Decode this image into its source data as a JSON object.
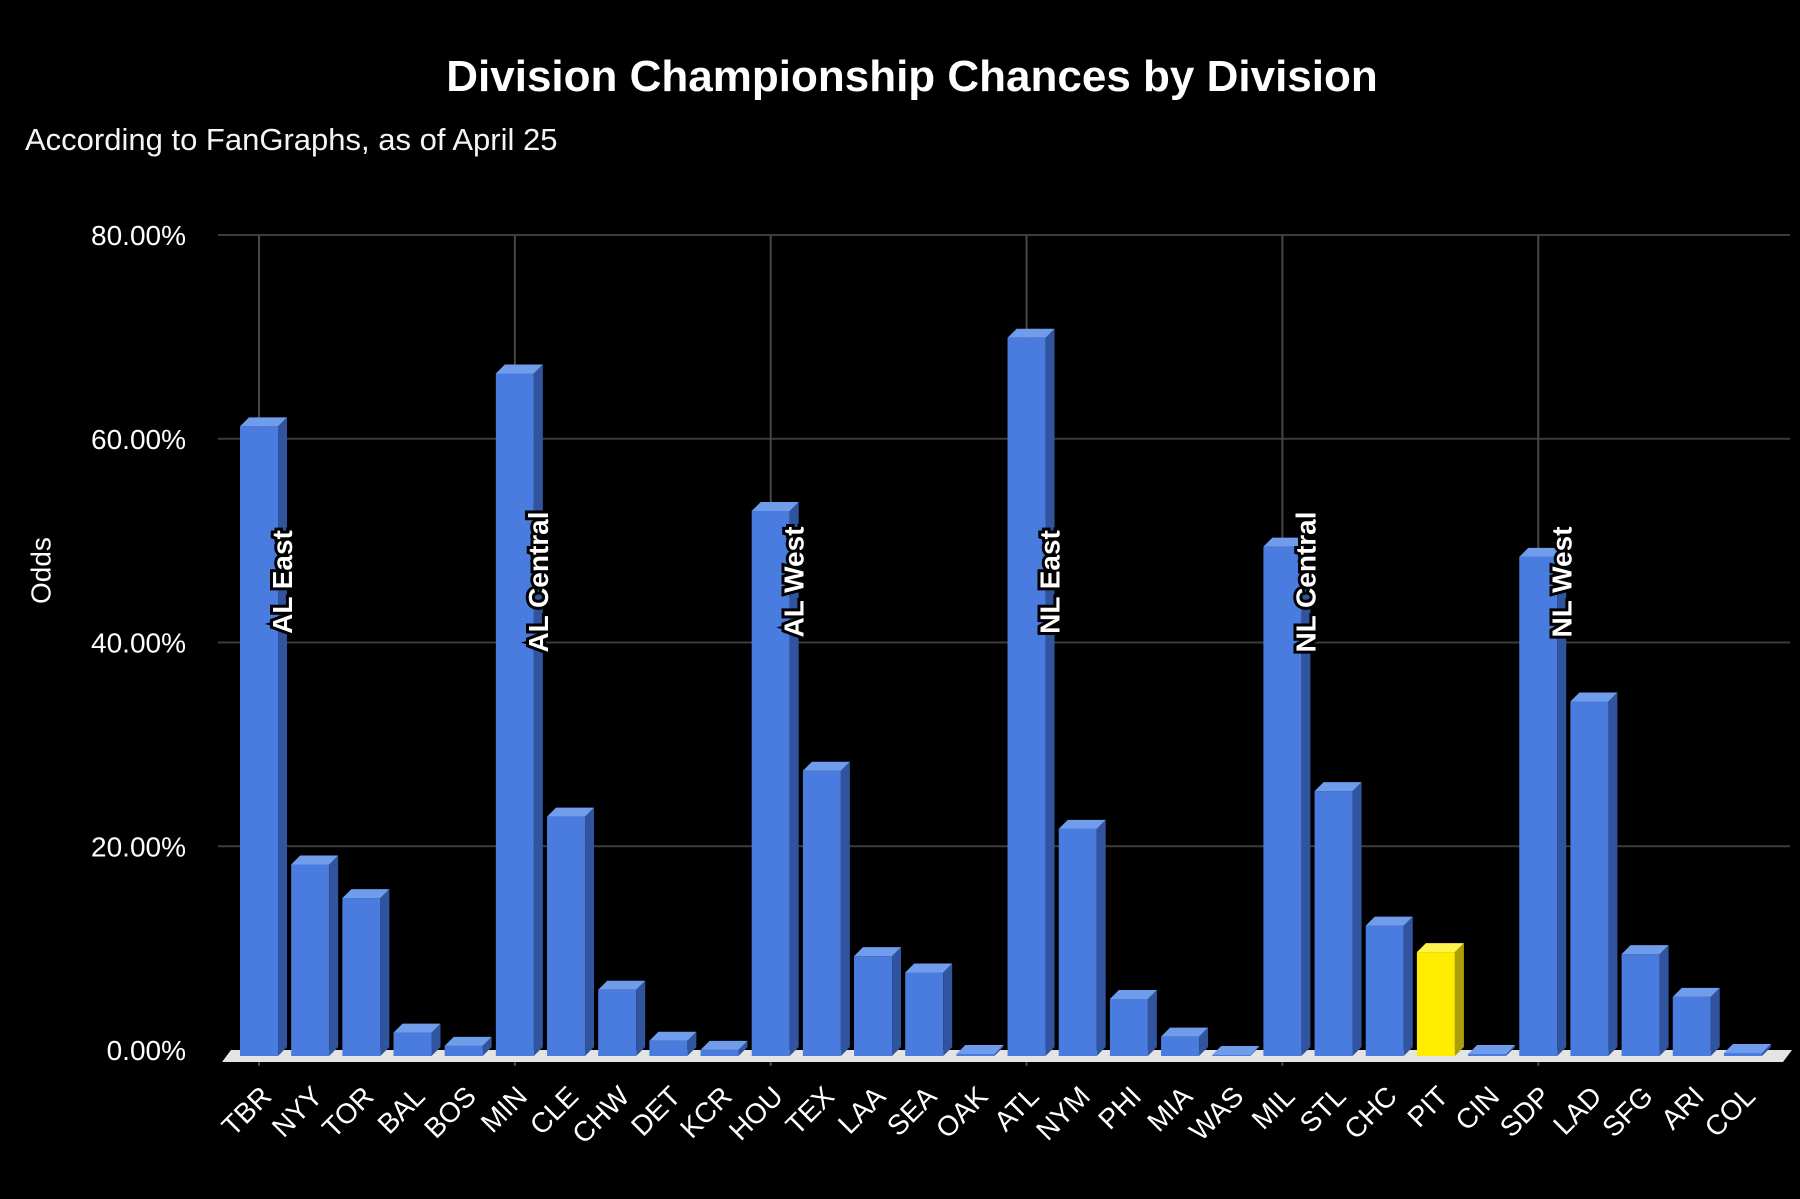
{
  "page": {
    "background": "#000000"
  },
  "chart_data": {
    "type": "bar",
    "title": "Division Championship Chances by Division",
    "subtitle": "According to FanGraphs, as of April 25",
    "ylabel": "Odds",
    "xlabel": "",
    "ylim": [
      0,
      80
    ],
    "y_ticks": [
      "0.00%",
      "20.00%",
      "40.00%",
      "60.00%",
      "80.00%"
    ],
    "y_tick_values": [
      0,
      20,
      40,
      60,
      80
    ],
    "grid": true,
    "legend": "none",
    "bar_style": "3d",
    "categories": [
      "TBR",
      "NYY",
      "TOR",
      "BAL",
      "BOS",
      "MIN",
      "CLE",
      "CHW",
      "DET",
      "KCR",
      "HOU",
      "TEX",
      "LAA",
      "SEA",
      "OAK",
      "ATL",
      "NYM",
      "PHI",
      "MIA",
      "WAS",
      "MIL",
      "STL",
      "CHC",
      "PIT",
      "CIN",
      "SDP",
      "LAD",
      "SFG",
      "ARI",
      "COL"
    ],
    "values": [
      61.8,
      18.8,
      15.5,
      2.3,
      1.0,
      67.0,
      23.5,
      6.5,
      1.5,
      0.6,
      53.5,
      28.0,
      9.8,
      8.2,
      0.2,
      70.5,
      22.3,
      5.6,
      1.9,
      0.1,
      50.0,
      26.0,
      12.8,
      10.2,
      0.2,
      49.0,
      34.8,
      10.0,
      5.8,
      0.3
    ],
    "divisions": [
      {
        "label": "AL East",
        "teams": [
          "TBR",
          "NYY",
          "TOR",
          "BAL",
          "BOS"
        ],
        "values": [
          61.8,
          18.8,
          15.5,
          2.3,
          1.0
        ]
      },
      {
        "label": "AL Central",
        "teams": [
          "MIN",
          "CLE",
          "CHW",
          "DET",
          "KCR"
        ],
        "values": [
          67.0,
          23.5,
          6.5,
          1.5,
          0.6
        ]
      },
      {
        "label": "AL West",
        "teams": [
          "HOU",
          "TEX",
          "LAA",
          "SEA",
          "OAK"
        ],
        "values": [
          53.5,
          28.0,
          9.8,
          8.2,
          0.2
        ]
      },
      {
        "label": "NL East",
        "teams": [
          "ATL",
          "NYM",
          "PHI",
          "MIA",
          "WAS"
        ],
        "values": [
          70.5,
          22.3,
          5.6,
          1.9,
          0.1
        ]
      },
      {
        "label": "NL Central",
        "teams": [
          "MIL",
          "STL",
          "CHC",
          "PIT",
          "CIN"
        ],
        "values": [
          50.0,
          26.0,
          12.8,
          10.2,
          0.2
        ]
      },
      {
        "label": "NL West",
        "teams": [
          "SDP",
          "LAD",
          "SFG",
          "ARI",
          "COL"
        ],
        "values": [
          49.0,
          34.8,
          10.0,
          5.8,
          0.3
        ]
      }
    ],
    "highlight_team": "PIT",
    "colors": {
      "background": "#000000",
      "bar_front": "#4a7ce0",
      "bar_side": "#30549e",
      "bar_top": "#6f9ceb",
      "highlight_front": "#ffec00",
      "highlight_side": "#ac9e08",
      "highlight_top": "#fff34d",
      "gridline": "#3c3c3c",
      "division_gridline": "#474747",
      "floor": "#e4e4e4",
      "text": "#ffffff"
    }
  }
}
